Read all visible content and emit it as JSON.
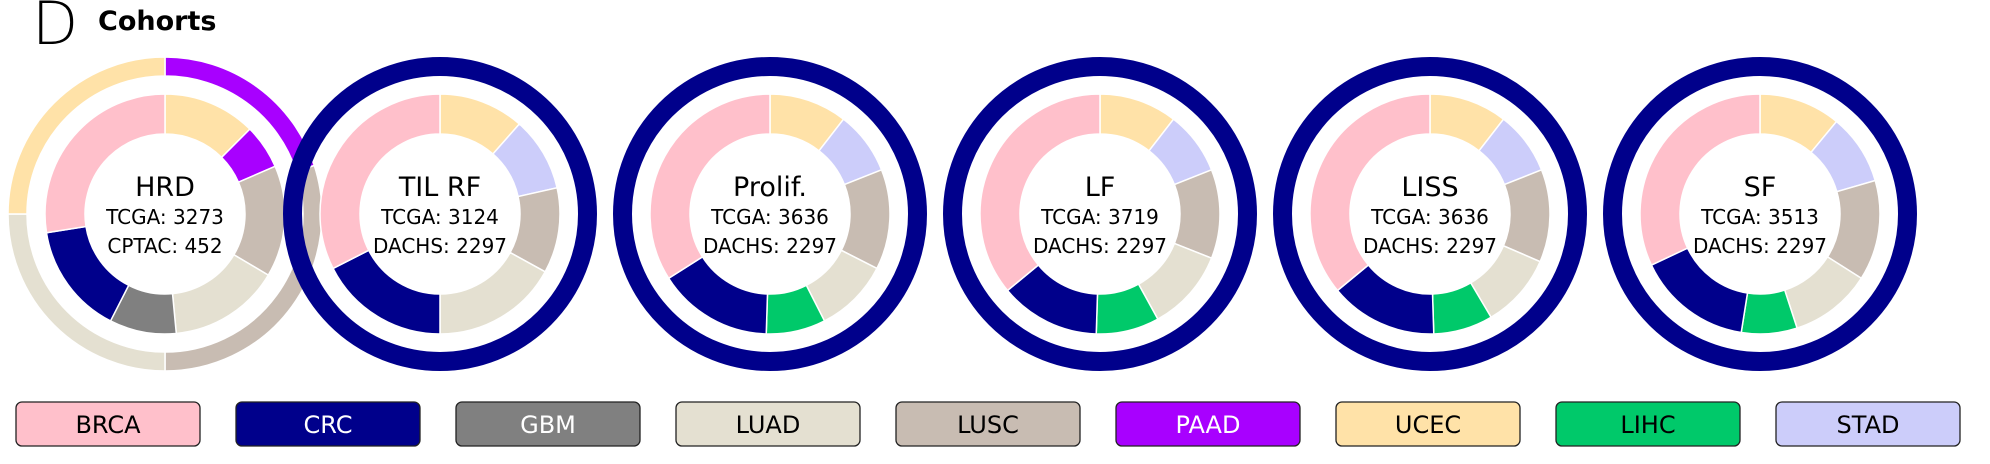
{
  "panel": {
    "letter": "D",
    "title": "Cohorts"
  },
  "colors": {
    "BRCA": "#ffc0cb",
    "CRC": "#00008b",
    "GBM": "#808080",
    "LUAD": "#e4e0d1",
    "LUSC": "#c8bcb2",
    "PAAD": "#a800ff",
    "UCEC": "#ffe2a8",
    "LIHC": "#00c96a",
    "STAD": "#cccdfa"
  },
  "legend": [
    {
      "label": "BRCA",
      "color": "#ffc0cb",
      "text_color": "#000000"
    },
    {
      "label": "CRC",
      "color": "#00008b",
      "text_color": "#ffffff"
    },
    {
      "label": "GBM",
      "color": "#808080",
      "text_color": "#ffffff"
    },
    {
      "label": "LUAD",
      "color": "#e4e0d1",
      "text_color": "#000000"
    },
    {
      "label": "LUSC",
      "color": "#c8bcb2",
      "text_color": "#000000"
    },
    {
      "label": "PAAD",
      "color": "#a800ff",
      "text_color": "#ffffff"
    },
    {
      "label": "UCEC",
      "color": "#ffe2a8",
      "text_color": "#000000"
    },
    {
      "label": "LIHC",
      "color": "#00c96a",
      "text_color": "#000000"
    },
    {
      "label": "STAD",
      "color": "#cccdfa",
      "text_color": "#000000"
    }
  ],
  "chart_data": [
    {
      "type": "pie",
      "name": "HRD",
      "center_lines": [
        "TCGA: 3273",
        "CPTAC: 452"
      ],
      "outer_ring": [
        {
          "label": "PAAD",
          "value": 0.2
        },
        {
          "label": "LUSC",
          "value": 0.3
        },
        {
          "label": "LUAD",
          "value": 0.25
        },
        {
          "label": "UCEC",
          "value": 0.25
        }
      ],
      "inner_ring": [
        {
          "label": "UCEC",
          "value": 0.125
        },
        {
          "label": "PAAD",
          "value": 0.06
        },
        {
          "label": "LUSC",
          "value": 0.15
        },
        {
          "label": "LUAD",
          "value": 0.15
        },
        {
          "label": "GBM",
          "value": 0.09
        },
        {
          "label": "CRC",
          "value": 0.15
        },
        {
          "label": "BRCA",
          "value": 0.275
        }
      ]
    },
    {
      "type": "pie",
      "name": "TIL RF",
      "center_lines": [
        "TCGA: 3124",
        "DACHS: 2297"
      ],
      "outer_ring": [
        {
          "label": "CRC",
          "value": 1.0
        }
      ],
      "inner_ring": [
        {
          "label": "UCEC",
          "value": 0.115
        },
        {
          "label": "STAD",
          "value": 0.1
        },
        {
          "label": "LUSC",
          "value": 0.115
        },
        {
          "label": "LUAD",
          "value": 0.17
        },
        {
          "label": "CRC",
          "value": 0.175
        },
        {
          "label": "BRCA",
          "value": 0.325
        }
      ]
    },
    {
      "type": "pie",
      "name": "Prolif.",
      "center_lines": [
        "TCGA: 3636",
        "DACHS: 2297"
      ],
      "outer_ring": [
        {
          "label": "CRC",
          "value": 1.0
        }
      ],
      "inner_ring": [
        {
          "label": "UCEC",
          "value": 0.105
        },
        {
          "label": "STAD",
          "value": 0.085
        },
        {
          "label": "LUSC",
          "value": 0.135
        },
        {
          "label": "LUAD",
          "value": 0.1
        },
        {
          "label": "LIHC",
          "value": 0.08
        },
        {
          "label": "CRC",
          "value": 0.155
        },
        {
          "label": "BRCA",
          "value": 0.34
        }
      ]
    },
    {
      "type": "pie",
      "name": "LF",
      "center_lines": [
        "TCGA: 3719",
        "DACHS: 2297"
      ],
      "outer_ring": [
        {
          "label": "CRC",
          "value": 1.0
        }
      ],
      "inner_ring": [
        {
          "label": "UCEC",
          "value": 0.105
        },
        {
          "label": "STAD",
          "value": 0.085
        },
        {
          "label": "LUSC",
          "value": 0.12
        },
        {
          "label": "LUAD",
          "value": 0.11
        },
        {
          "label": "LIHC",
          "value": 0.085
        },
        {
          "label": "CRC",
          "value": 0.135
        },
        {
          "label": "BRCA",
          "value": 0.36
        }
      ]
    },
    {
      "type": "pie",
      "name": "LISS",
      "center_lines": [
        "TCGA: 3636",
        "DACHS: 2297"
      ],
      "outer_ring": [
        {
          "label": "CRC",
          "value": 1.0
        }
      ],
      "inner_ring": [
        {
          "label": "UCEC",
          "value": 0.105
        },
        {
          "label": "STAD",
          "value": 0.085
        },
        {
          "label": "LUSC",
          "value": 0.125
        },
        {
          "label": "LUAD",
          "value": 0.1
        },
        {
          "label": "LIHC",
          "value": 0.08
        },
        {
          "label": "CRC",
          "value": 0.145
        },
        {
          "label": "BRCA",
          "value": 0.36
        }
      ]
    },
    {
      "type": "pie",
      "name": "SF",
      "center_lines": [
        "TCGA: 3513",
        "DACHS: 2297"
      ],
      "outer_ring": [
        {
          "label": "CRC",
          "value": 1.0
        }
      ],
      "inner_ring": [
        {
          "label": "UCEC",
          "value": 0.11
        },
        {
          "label": "STAD",
          "value": 0.095
        },
        {
          "label": "LUSC",
          "value": 0.135
        },
        {
          "label": "LUAD",
          "value": 0.11
        },
        {
          "label": "LIHC",
          "value": 0.075
        },
        {
          "label": "CRC",
          "value": 0.155
        },
        {
          "label": "BRCA",
          "value": 0.32
        }
      ]
    }
  ]
}
